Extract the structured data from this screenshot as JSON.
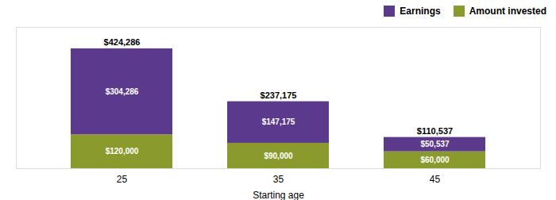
{
  "chart_data": {
    "type": "bar",
    "stacked": true,
    "categories": [
      "25",
      "35",
      "45"
    ],
    "series": [
      {
        "name": "Amount invested",
        "color": "#8b9a2c",
        "values": [
          120000,
          90000,
          60000
        ],
        "value_labels": [
          "$120,000",
          "$90,000",
          "$60,000"
        ]
      },
      {
        "name": "Earnings",
        "color": "#5b3a8e",
        "values": [
          304286,
          147175,
          50537
        ],
        "value_labels": [
          "$304,286",
          "$147,175",
          "$50,537"
        ]
      }
    ],
    "totals": [
      424286,
      237175,
      110537
    ],
    "total_labels": [
      "$424,286",
      "$237,175",
      "$110,537"
    ],
    "xlabel": "Starting age",
    "ylim": [
      0,
      500000
    ],
    "data_labels": true,
    "tick_labels": "x",
    "grid": false,
    "legend": "upper right"
  }
}
